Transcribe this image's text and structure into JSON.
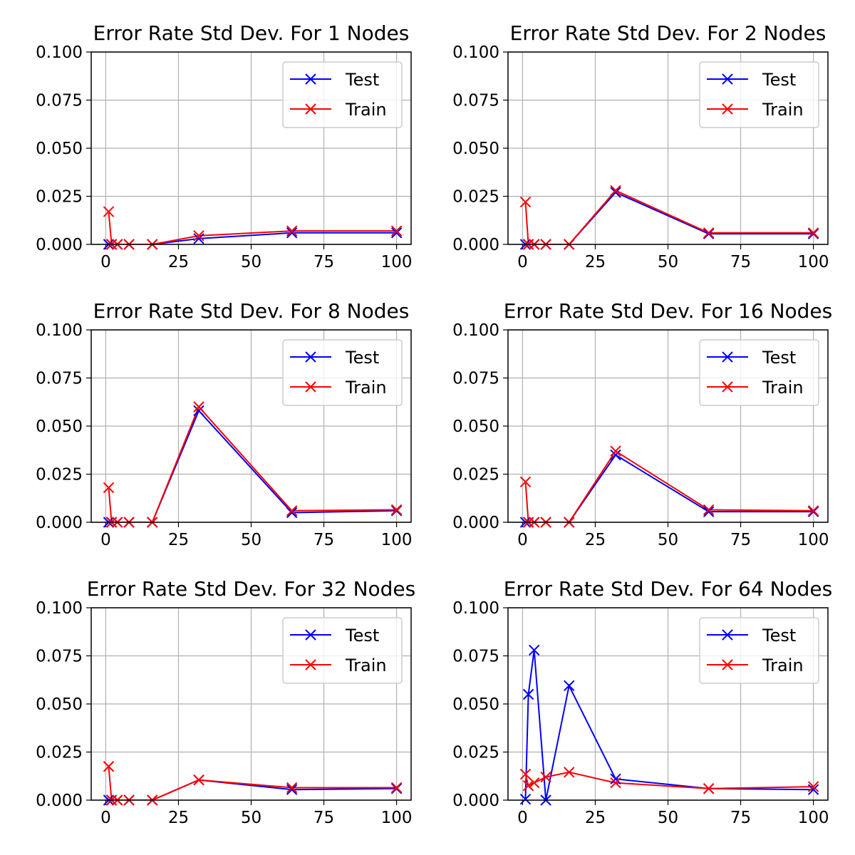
{
  "figure": {
    "rows": 3,
    "cols": 2
  },
  "chart_data": [
    {
      "type": "line",
      "title": "Error Rate Std Dev. For 1 Nodes",
      "xlabel": "",
      "ylabel": "",
      "xlim": [
        -5,
        105
      ],
      "ylim": [
        0,
        0.1
      ],
      "xticks": [
        0,
        25,
        50,
        75,
        100
      ],
      "xtick_labels": [
        "0",
        "25",
        "50",
        "75",
        "100"
      ],
      "yticks": [
        0,
        0.025,
        0.05,
        0.075,
        0.1
      ],
      "ytick_labels": [
        "0.000",
        "0.025",
        "0.050",
        "0.075",
        "0.100"
      ],
      "grid": true,
      "legend": "upper-right",
      "x": [
        1,
        2,
        4,
        8,
        16,
        32,
        64,
        100
      ],
      "series": [
        {
          "name": "Test",
          "color": "#0000ff",
          "marker": "x",
          "values": [
            0,
            0,
            0,
            0,
            0,
            0.003,
            0.006,
            0.006
          ]
        },
        {
          "name": "Train",
          "color": "#ff0000",
          "marker": "x",
          "values": [
            0.017,
            0,
            0,
            0,
            0,
            0.0045,
            0.007,
            0.007
          ]
        }
      ]
    },
    {
      "type": "line",
      "title": "Error Rate Std Dev. For 2 Nodes",
      "xlabel": "",
      "ylabel": "",
      "xlim": [
        -5,
        105
      ],
      "ylim": [
        0,
        0.1
      ],
      "xticks": [
        0,
        25,
        50,
        75,
        100
      ],
      "xtick_labels": [
        "0",
        "25",
        "50",
        "75",
        "100"
      ],
      "yticks": [
        0,
        0.025,
        0.05,
        0.075,
        0.1
      ],
      "ytick_labels": [
        "0.000",
        "0.025",
        "0.050",
        "0.075",
        "0.100"
      ],
      "grid": true,
      "legend": "upper-right",
      "x": [
        1,
        2,
        4,
        8,
        16,
        32,
        64,
        100
      ],
      "series": [
        {
          "name": "Test",
          "color": "#0000ff",
          "marker": "x",
          "values": [
            0,
            0,
            0,
            0,
            0,
            0.027,
            0.0055,
            0.0055
          ]
        },
        {
          "name": "Train",
          "color": "#ff0000",
          "marker": "x",
          "values": [
            0.022,
            0,
            0,
            0,
            0,
            0.028,
            0.006,
            0.006
          ]
        }
      ]
    },
    {
      "type": "line",
      "title": "Error Rate Std Dev. For 8 Nodes",
      "xlabel": "",
      "ylabel": "",
      "xlim": [
        -5,
        105
      ],
      "ylim": [
        0,
        0.1
      ],
      "xticks": [
        0,
        25,
        50,
        75,
        100
      ],
      "xtick_labels": [
        "0",
        "25",
        "50",
        "75",
        "100"
      ],
      "yticks": [
        0,
        0.025,
        0.05,
        0.075,
        0.1
      ],
      "ytick_labels": [
        "0.000",
        "0.025",
        "0.050",
        "0.075",
        "0.100"
      ],
      "grid": true,
      "legend": "upper-right",
      "x": [
        1,
        2,
        4,
        8,
        16,
        32,
        64,
        100
      ],
      "series": [
        {
          "name": "Test",
          "color": "#0000ff",
          "marker": "x",
          "values": [
            0,
            0,
            0,
            0,
            0,
            0.058,
            0.005,
            0.006
          ]
        },
        {
          "name": "Train",
          "color": "#ff0000",
          "marker": "x",
          "values": [
            0.018,
            0,
            0,
            0,
            0,
            0.06,
            0.006,
            0.0065
          ]
        }
      ]
    },
    {
      "type": "line",
      "title": "Error Rate Std Dev. For 16 Nodes",
      "xlabel": "",
      "ylabel": "",
      "xlim": [
        -5,
        105
      ],
      "ylim": [
        0,
        0.1
      ],
      "xticks": [
        0,
        25,
        50,
        75,
        100
      ],
      "xtick_labels": [
        "0",
        "25",
        "50",
        "75",
        "100"
      ],
      "yticks": [
        0,
        0.025,
        0.05,
        0.075,
        0.1
      ],
      "ytick_labels": [
        "0.000",
        "0.025",
        "0.050",
        "0.075",
        "0.100"
      ],
      "grid": true,
      "legend": "upper-right",
      "x": [
        1,
        2,
        4,
        8,
        16,
        32,
        64,
        100
      ],
      "series": [
        {
          "name": "Test",
          "color": "#0000ff",
          "marker": "x",
          "values": [
            0,
            0,
            0,
            0,
            0,
            0.035,
            0.0055,
            0.0055
          ]
        },
        {
          "name": "Train",
          "color": "#ff0000",
          "marker": "x",
          "values": [
            0.021,
            0,
            0,
            0,
            0,
            0.037,
            0.0065,
            0.006
          ]
        }
      ]
    },
    {
      "type": "line",
      "title": "Error Rate Std Dev. For 32 Nodes",
      "xlabel": "",
      "ylabel": "",
      "xlim": [
        -5,
        105
      ],
      "ylim": [
        0,
        0.1
      ],
      "xticks": [
        0,
        25,
        50,
        75,
        100
      ],
      "xtick_labels": [
        "0",
        "25",
        "50",
        "75",
        "100"
      ],
      "yticks": [
        0,
        0.025,
        0.05,
        0.075,
        0.1
      ],
      "ytick_labels": [
        "0.000",
        "0.025",
        "0.050",
        "0.075",
        "0.100"
      ],
      "grid": true,
      "legend": "upper-right",
      "x": [
        1,
        2,
        4,
        8,
        16,
        32,
        64,
        100
      ],
      "series": [
        {
          "name": "Test",
          "color": "#0000ff",
          "marker": "x",
          "values": [
            0,
            0,
            0,
            0,
            0,
            0.0105,
            0.0055,
            0.006
          ]
        },
        {
          "name": "Train",
          "color": "#ff0000",
          "marker": "x",
          "values": [
            0.0175,
            0,
            0,
            0,
            0,
            0.0105,
            0.0065,
            0.0065
          ]
        }
      ]
    },
    {
      "type": "line",
      "title": "Error Rate Std Dev. For 64 Nodes",
      "xlabel": "",
      "ylabel": "",
      "xlim": [
        -5,
        105
      ],
      "ylim": [
        0,
        0.1
      ],
      "xticks": [
        0,
        25,
        50,
        75,
        100
      ],
      "xtick_labels": [
        "0",
        "25",
        "50",
        "75",
        "100"
      ],
      "yticks": [
        0,
        0.025,
        0.05,
        0.075,
        0.1
      ],
      "ytick_labels": [
        "0.000",
        "0.025",
        "0.050",
        "0.075",
        "0.100"
      ],
      "grid": true,
      "legend": "upper-right",
      "x": [
        1,
        2,
        4,
        8,
        16,
        32,
        64,
        100
      ],
      "series": [
        {
          "name": "Test",
          "color": "#0000ff",
          "marker": "x",
          "values": [
            0.0005,
            0.055,
            0.078,
            0,
            0.0595,
            0.011,
            0.006,
            0.0055
          ]
        },
        {
          "name": "Train",
          "color": "#ff0000",
          "marker": "x",
          "values": [
            0.0135,
            0.0075,
            0.009,
            0.012,
            0.0145,
            0.009,
            0.006,
            0.007
          ]
        }
      ]
    }
  ]
}
